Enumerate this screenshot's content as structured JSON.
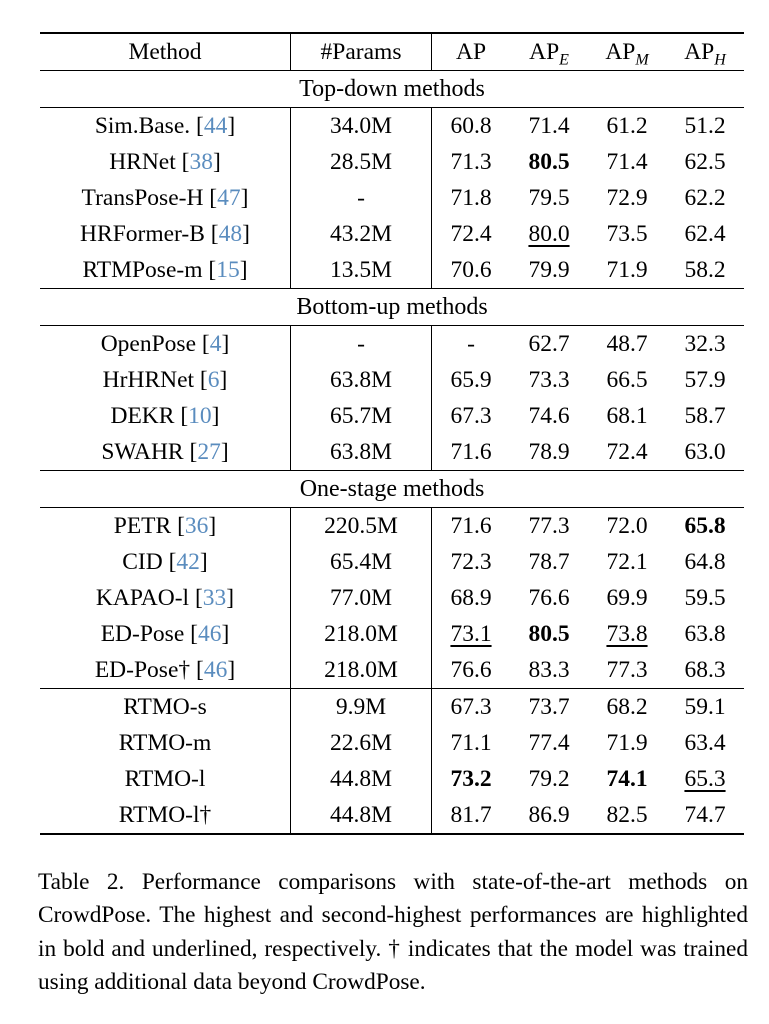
{
  "colors": {
    "cite_blue": "#5a8cbe",
    "text": "#000000",
    "background": "#ffffff"
  },
  "table": {
    "header": {
      "method_label": "Method",
      "params_label": "#Params",
      "metric_labels": [
        {
          "base": "AP",
          "sub": ""
        },
        {
          "base": "AP",
          "sub": "E"
        },
        {
          "base": "AP",
          "sub": "M"
        },
        {
          "base": "AP",
          "sub": "H"
        }
      ]
    },
    "sections": [
      {
        "title": "Top-down methods",
        "rows": [
          {
            "method": "Sim.Base.",
            "cite": "44",
            "params": "34.0M",
            "values": [
              [
                "60.8",
                ""
              ],
              [
                "71.4",
                ""
              ],
              [
                "61.2",
                ""
              ],
              [
                "51.2",
                ""
              ]
            ]
          },
          {
            "method": "HRNet",
            "cite": "38",
            "params": "28.5M",
            "values": [
              [
                "71.3",
                ""
              ],
              [
                "80.5",
                "b"
              ],
              [
                "71.4",
                ""
              ],
              [
                "62.5",
                ""
              ]
            ]
          },
          {
            "method": "TransPose-H",
            "cite": "47",
            "params": "-",
            "values": [
              [
                "71.8",
                ""
              ],
              [
                "79.5",
                ""
              ],
              [
                "72.9",
                ""
              ],
              [
                "62.2",
                ""
              ]
            ]
          },
          {
            "method": "HRFormer-B",
            "cite": "48",
            "params": "43.2M",
            "values": [
              [
                "72.4",
                ""
              ],
              [
                "80.0",
                "u"
              ],
              [
                "73.5",
                ""
              ],
              [
                "62.4",
                ""
              ]
            ]
          },
          {
            "method": "RTMPose-m",
            "cite": "15",
            "params": "13.5M",
            "values": [
              [
                "70.6",
                ""
              ],
              [
                "79.9",
                ""
              ],
              [
                "71.9",
                ""
              ],
              [
                "58.2",
                ""
              ]
            ]
          }
        ]
      },
      {
        "title": "Bottom-up methods",
        "rows": [
          {
            "method": "OpenPose",
            "cite": "4",
            "params": "-",
            "values": [
              [
                "-",
                ""
              ],
              [
                "62.7",
                ""
              ],
              [
                "48.7",
                ""
              ],
              [
                "32.3",
                ""
              ]
            ]
          },
          {
            "method": "HrHRNet",
            "cite": "6",
            "params": "63.8M",
            "values": [
              [
                "65.9",
                ""
              ],
              [
                "73.3",
                ""
              ],
              [
                "66.5",
                ""
              ],
              [
                "57.9",
                ""
              ]
            ]
          },
          {
            "method": "DEKR",
            "cite": "10",
            "params": "65.7M",
            "values": [
              [
                "67.3",
                ""
              ],
              [
                "74.6",
                ""
              ],
              [
                "68.1",
                ""
              ],
              [
                "58.7",
                ""
              ]
            ]
          },
          {
            "method": "SWAHR",
            "cite": "27",
            "params": "63.8M",
            "values": [
              [
                "71.6",
                ""
              ],
              [
                "78.9",
                ""
              ],
              [
                "72.4",
                ""
              ],
              [
                "63.0",
                ""
              ]
            ]
          }
        ]
      },
      {
        "title": "One-stage methods",
        "rows": [
          {
            "method": "PETR",
            "cite": "36",
            "params": "220.5M",
            "values": [
              [
                "71.6",
                ""
              ],
              [
                "77.3",
                ""
              ],
              [
                "72.0",
                ""
              ],
              [
                "65.8",
                "b"
              ]
            ]
          },
          {
            "method": "CID",
            "cite": "42",
            "params": "65.4M",
            "values": [
              [
                "72.3",
                ""
              ],
              [
                "78.7",
                ""
              ],
              [
                "72.1",
                ""
              ],
              [
                "64.8",
                ""
              ]
            ]
          },
          {
            "method": "KAPAO-l",
            "cite": "33",
            "params": "77.0M",
            "values": [
              [
                "68.9",
                ""
              ],
              [
                "76.6",
                ""
              ],
              [
                "69.9",
                ""
              ],
              [
                "59.5",
                ""
              ]
            ]
          },
          {
            "method": "ED-Pose",
            "cite": "46",
            "params": "218.0M",
            "values": [
              [
                "73.1",
                "u"
              ],
              [
                "80.5",
                "b"
              ],
              [
                "73.8",
                "u"
              ],
              [
                "63.8",
                ""
              ]
            ]
          },
          {
            "method": "ED-Pose†",
            "cite": "46",
            "params": "218.0M",
            "values": [
              [
                "76.6",
                ""
              ],
              [
                "83.3",
                ""
              ],
              [
                "77.3",
                ""
              ],
              [
                "68.3",
                ""
              ]
            ]
          }
        ]
      },
      {
        "title": null,
        "rows": [
          {
            "method": "RTMO-s",
            "cite": null,
            "params": "9.9M",
            "values": [
              [
                "67.3",
                ""
              ],
              [
                "73.7",
                ""
              ],
              [
                "68.2",
                ""
              ],
              [
                "59.1",
                ""
              ]
            ]
          },
          {
            "method": "RTMO-m",
            "cite": null,
            "params": "22.6M",
            "values": [
              [
                "71.1",
                ""
              ],
              [
                "77.4",
                ""
              ],
              [
                "71.9",
                ""
              ],
              [
                "63.4",
                ""
              ]
            ]
          },
          {
            "method": "RTMO-l",
            "cite": null,
            "params": "44.8M",
            "values": [
              [
                "73.2",
                "b"
              ],
              [
                "79.2",
                ""
              ],
              [
                "74.1",
                "b"
              ],
              [
                "65.3",
                "u"
              ]
            ]
          },
          {
            "method": "RTMO-l†",
            "cite": null,
            "params": "44.8M",
            "values": [
              [
                "81.7",
                ""
              ],
              [
                "86.9",
                ""
              ],
              [
                "82.5",
                ""
              ],
              [
                "74.7",
                ""
              ]
            ]
          }
        ]
      }
    ]
  },
  "caption": "Table 2.  Performance comparisons with state-of-the-art methods on CrowdPose. The highest and second-highest performances are highlighted in bold and underlined, respectively.  † indicates that the model was trained using additional data beyond CrowdPose."
}
